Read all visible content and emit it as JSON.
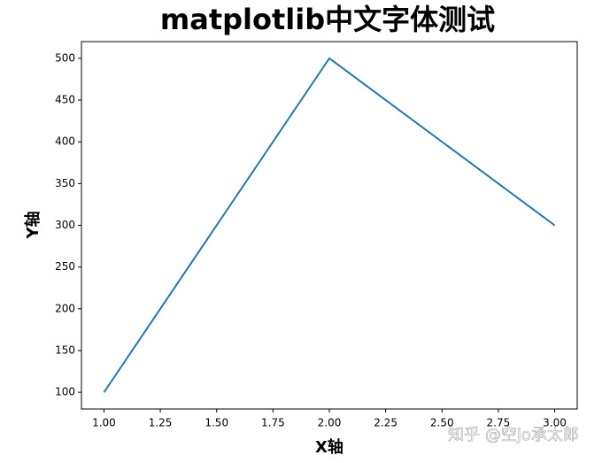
{
  "chart_data": {
    "type": "line",
    "title": "matplotlib中文字体测试",
    "x_label": "X轴",
    "y_label": "Y轴",
    "x": [
      1,
      2,
      3
    ],
    "values": [
      100,
      500,
      300
    ],
    "color": "#1f77b4",
    "xlim": [
      0.9,
      3.1
    ],
    "xticks": [
      {
        "value": 1,
        "label": "1.00"
      },
      {
        "value": 1.25,
        "label": "1.25"
      },
      {
        "value": 1.5,
        "label": "1.50"
      },
      {
        "value": 1.75,
        "label": "1.75"
      },
      {
        "value": 2,
        "label": "2.00"
      },
      {
        "value": 2.25,
        "label": "2.25"
      },
      {
        "value": 2.5,
        "label": "2.50"
      },
      {
        "value": 2.75,
        "label": "2.75"
      },
      {
        "value": 3,
        "label": "3.00"
      }
    ],
    "ylim": [
      80,
      520
    ],
    "yticks": [
      100,
      150,
      200,
      250,
      300,
      350,
      400,
      450,
      500
    ],
    "grid": false,
    "watermark": "知乎 @空jo承太郎"
  }
}
